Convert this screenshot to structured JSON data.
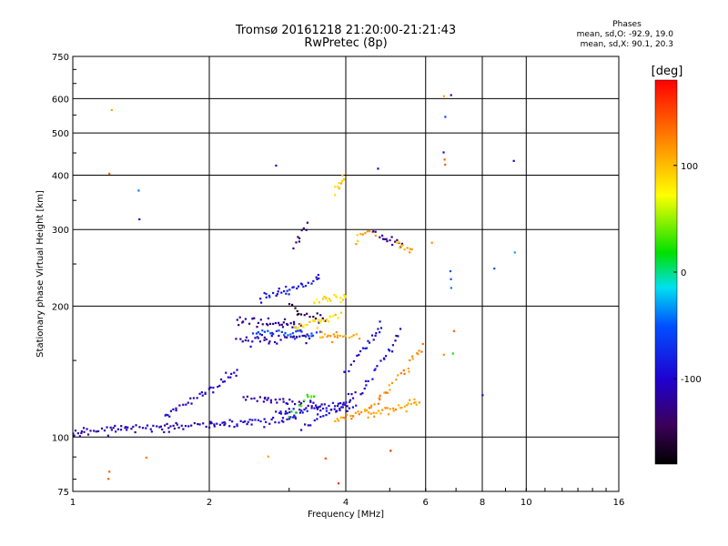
{
  "header": {
    "title": "Tromsø 20161218 21:20:00-21:21:43",
    "subtitle": "RwPretec (8p)"
  },
  "phase_info": {
    "heading": "Phases",
    "line_o": "mean, sd,O: -92.9, 19.0",
    "line_x": "mean, sd,X:  90.1, 20.3"
  },
  "chart_data": {
    "type": "scatter",
    "xlabel": "Frequency [MHz]",
    "ylabel": "Stationary phase Virtual Height [km]",
    "xscale": "log",
    "yscale": "log",
    "xlim": [
      1,
      16
    ],
    "ylim": [
      75,
      750
    ],
    "x_ticks": [
      1,
      2,
      4,
      6,
      8,
      10,
      16
    ],
    "x_tick_labels": [
      "1",
      "2",
      "4",
      "6",
      "8",
      "10",
      "16"
    ],
    "x_gridlines": [
      1,
      2,
      4,
      6,
      8,
      10
    ],
    "y_ticks": [
      75,
      100,
      200,
      300,
      400,
      500,
      600,
      750
    ],
    "y_tick_labels": [
      "75",
      "100",
      "200",
      "300",
      "400",
      "500",
      "600",
      "750"
    ],
    "y_gridlines": [
      100,
      200,
      300,
      400,
      500,
      600
    ],
    "grid": true,
    "colorbar": {
      "label": "[deg]",
      "min": -180,
      "max": 180,
      "tick_values": [
        100,
        0,
        -100
      ],
      "tick_labels": [
        "100",
        "0",
        "-100"
      ]
    },
    "traces": [
      {
        "x_start": 1.0,
        "x_end": 2.05,
        "y_start": 103,
        "y_end": 107,
        "phase": -110
      },
      {
        "x_start": 1.6,
        "x_end": 2.3,
        "y_start": 112,
        "y_end": 140,
        "phase": -105
      },
      {
        "x_start": 2.05,
        "x_end": 3.1,
        "y_start": 106,
        "y_end": 110,
        "phase": -100
      },
      {
        "x_start": 2.4,
        "x_end": 3.6,
        "y_start": 123,
        "y_end": 118,
        "phase": -110
      },
      {
        "x_start": 2.8,
        "x_end": 4.2,
        "y_start": 113,
        "y_end": 118,
        "phase": -95
      },
      {
        "x_start": 2.3,
        "x_end": 3.2,
        "y_start": 186,
        "y_end": 180,
        "phase": -120
      },
      {
        "x_start": 2.3,
        "x_end": 3.3,
        "y_start": 166,
        "y_end": 170,
        "phase": -115
      },
      {
        "x_start": 2.5,
        "x_end": 3.5,
        "y_start": 175,
        "y_end": 172,
        "phase": -60
      },
      {
        "x_start": 2.6,
        "x_end": 3.5,
        "y_start": 210,
        "y_end": 230,
        "phase": -90
      },
      {
        "x_start": 3.0,
        "x_end": 3.6,
        "y_start": 200,
        "y_end": 183,
        "phase": -150
      },
      {
        "x_start": 3.1,
        "x_end": 3.9,
        "y_start": 178,
        "y_end": 190,
        "phase": 90
      },
      {
        "x_start": 3.5,
        "x_end": 4.3,
        "y_start": 170,
        "y_end": 171,
        "phase": 110
      },
      {
        "x_start": 3.4,
        "x_end": 4.0,
        "y_start": 205,
        "y_end": 210,
        "phase": 85
      },
      {
        "x_start": 3.1,
        "x_end": 3.3,
        "y_start": 280,
        "y_end": 310,
        "phase": -140
      },
      {
        "x_start": 4.2,
        "x_end": 4.6,
        "y_start": 282,
        "y_end": 300,
        "phase": 105
      },
      {
        "x_start": 4.6,
        "x_end": 5.3,
        "y_start": 295,
        "y_end": 275,
        "phase": -120
      },
      {
        "x_start": 5.2,
        "x_end": 5.6,
        "y_start": 275,
        "y_end": 270,
        "phase": 105
      },
      {
        "x_start": 3.8,
        "x_end": 3.95,
        "y_start": 370,
        "y_end": 390,
        "phase": 100
      },
      {
        "x_start": 3.8,
        "x_end": 5.8,
        "y_start": 110,
        "y_end": 120,
        "phase": 115
      },
      {
        "x_start": 4.5,
        "x_end": 5.9,
        "y_start": 115,
        "y_end": 160,
        "phase": 120
      },
      {
        "x_start": 4.3,
        "x_end": 5.3,
        "y_start": 125,
        "y_end": 175,
        "phase": -100
      },
      {
        "x_start": 4.0,
        "x_end": 4.8,
        "y_start": 140,
        "y_end": 180,
        "phase": -95
      },
      {
        "x_start": 3.2,
        "x_end": 4.2,
        "y_start": 105,
        "y_end": 125,
        "phase": -105
      },
      {
        "x_start": 3.0,
        "x_end": 3.4,
        "y_start": 112,
        "y_end": 125,
        "phase": 30
      }
    ],
    "isolated_points": [
      {
        "x": 1.22,
        "y": 565,
        "phase": 110
      },
      {
        "x": 1.2,
        "y": 405,
        "phase": 140
      },
      {
        "x": 1.4,
        "y": 370,
        "phase": -40
      },
      {
        "x": 1.4,
        "y": 318,
        "phase": -95
      },
      {
        "x": 2.8,
        "y": 420,
        "phase": -110
      },
      {
        "x": 4.7,
        "y": 415,
        "phase": -105
      },
      {
        "x": 6.6,
        "y": 610,
        "phase": 110
      },
      {
        "x": 6.8,
        "y": 610,
        "phase": -130
      },
      {
        "x": 6.6,
        "y": 545,
        "phase": -60
      },
      {
        "x": 6.6,
        "y": 450,
        "phase": -100
      },
      {
        "x": 6.6,
        "y": 435,
        "phase": 140
      },
      {
        "x": 6.6,
        "y": 425,
        "phase": 140
      },
      {
        "x": 9.4,
        "y": 430,
        "phase": -110
      },
      {
        "x": 9.4,
        "y": 265,
        "phase": -30
      },
      {
        "x": 8.5,
        "y": 245,
        "phase": -50
      },
      {
        "x": 6.8,
        "y": 240,
        "phase": -50
      },
      {
        "x": 6.8,
        "y": 230,
        "phase": -50
      },
      {
        "x": 6.8,
        "y": 220,
        "phase": -40
      },
      {
        "x": 6.9,
        "y": 175,
        "phase": 140
      },
      {
        "x": 6.6,
        "y": 155,
        "phase": 120
      },
      {
        "x": 6.9,
        "y": 155,
        "phase": 20
      },
      {
        "x": 8.0,
        "y": 125,
        "phase": -110
      },
      {
        "x": 1.2,
        "y": 83,
        "phase": 140
      },
      {
        "x": 1.2,
        "y": 80,
        "phase": 140
      },
      {
        "x": 1.45,
        "y": 90,
        "phase": 130
      },
      {
        "x": 2.7,
        "y": 90,
        "phase": 110
      },
      {
        "x": 3.6,
        "y": 89,
        "phase": 150
      },
      {
        "x": 3.85,
        "y": 78,
        "phase": 160
      },
      {
        "x": 5.0,
        "y": 93,
        "phase": 160
      },
      {
        "x": 6.2,
        "y": 280,
        "phase": 120
      }
    ]
  }
}
